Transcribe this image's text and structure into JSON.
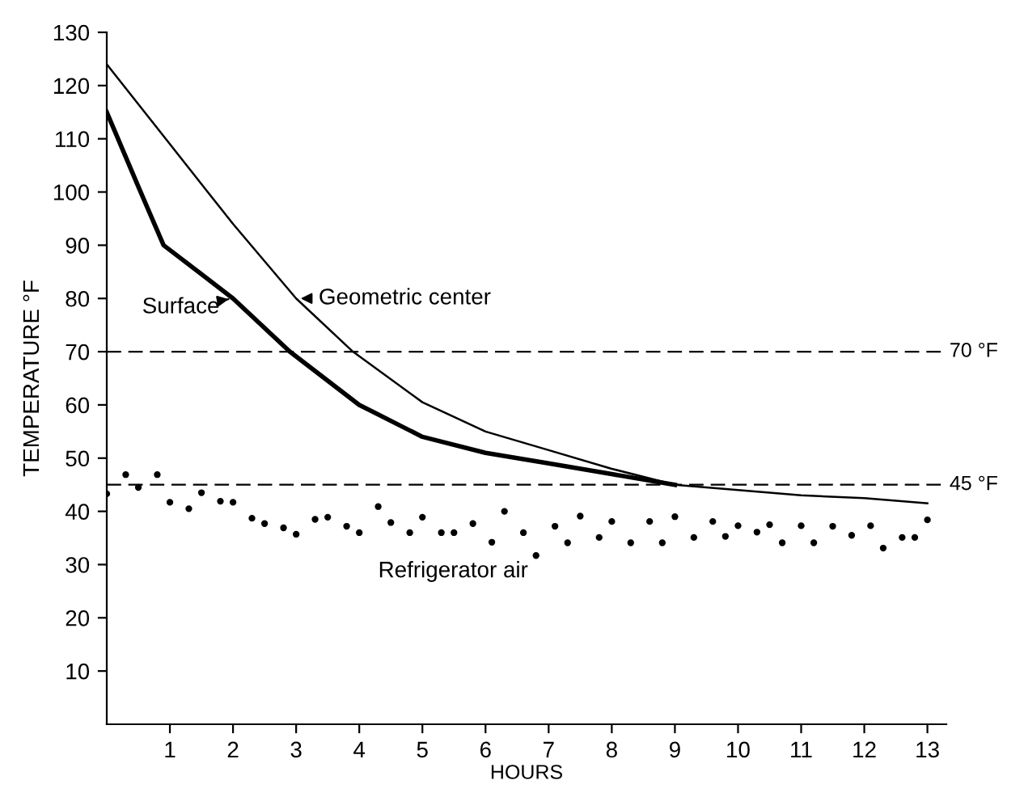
{
  "chart_data": {
    "type": "line",
    "xlabel": "HOURS",
    "ylabel": "TEMPERATURE °F",
    "xlim": [
      0,
      13.3
    ],
    "ylim": [
      0,
      130
    ],
    "xticks": [
      1,
      2,
      3,
      4,
      5,
      6,
      7,
      8,
      9,
      10,
      11,
      12,
      13
    ],
    "yticks": [
      10,
      20,
      30,
      40,
      50,
      60,
      70,
      80,
      90,
      100,
      110,
      120,
      130
    ],
    "grid": false,
    "series": [
      {
        "name": "Geometric center",
        "color": "#000000",
        "x": [
          0,
          1,
          2,
          3,
          3.9,
          5,
          6,
          7,
          8,
          9,
          10,
          11,
          12,
          13
        ],
        "values": [
          124,
          109,
          94,
          80,
          70,
          60.5,
          55,
          51.5,
          48,
          45,
          44,
          43,
          42.5,
          41.5
        ]
      },
      {
        "name": "Surface",
        "color": "#000000",
        "x": [
          0,
          0.5,
          0.9,
          2,
          2.9,
          4,
          5,
          6,
          7,
          8,
          9
        ],
        "values": [
          115,
          101,
          90,
          80,
          70,
          60,
          54,
          51,
          49,
          47,
          45
        ]
      },
      {
        "name": "Refrigerator air",
        "color": "#000000",
        "type": "scatter",
        "marker": "circle",
        "x": [
          0.0,
          0.3,
          0.5,
          0.8,
          1.0,
          1.3,
          1.5,
          1.8,
          2.0,
          2.3,
          2.5,
          2.8,
          3.0,
          3.3,
          3.5,
          3.8,
          4.0,
          4.3,
          4.5,
          4.8,
          5.0,
          5.3,
          5.5,
          5.8,
          6.1,
          6.3,
          6.6,
          6.8,
          7.1,
          7.3,
          7.5,
          7.8,
          8.0,
          8.3,
          8.6,
          8.8,
          9.0,
          9.3,
          9.6,
          9.8,
          10.0,
          10.3,
          10.5,
          10.7,
          11.0,
          11.2,
          11.5,
          11.8,
          12.1,
          12.3,
          12.6,
          12.8,
          13.0
        ],
        "values": [
          43.3,
          46.9,
          44.5,
          46.9,
          41.7,
          40.5,
          43.5,
          41.9,
          41.7,
          38.7,
          37.7,
          36.9,
          35.7,
          38.5,
          38.9,
          37.2,
          36.0,
          40.9,
          37.9,
          36.0,
          38.9,
          36.0,
          36.0,
          37.7,
          34.2,
          40.0,
          36.0,
          31.7,
          37.2,
          34.1,
          39.1,
          35.1,
          38.1,
          34.1,
          38.1,
          34.1,
          39.0,
          35.1,
          38.1,
          35.3,
          37.3,
          36.1,
          37.5,
          34.1,
          37.3,
          34.1,
          37.2,
          35.5,
          37.3,
          33.1,
          35.1,
          35.1,
          38.4
        ]
      }
    ],
    "ref_lines": [
      {
        "axis": "y",
        "value": 70,
        "label": "70 °F",
        "line_style": "dashed",
        "color": "#000000"
      },
      {
        "axis": "y",
        "value": 45,
        "label": "45 °F",
        "line_style": "dashed",
        "color": "#000000"
      }
    ]
  }
}
